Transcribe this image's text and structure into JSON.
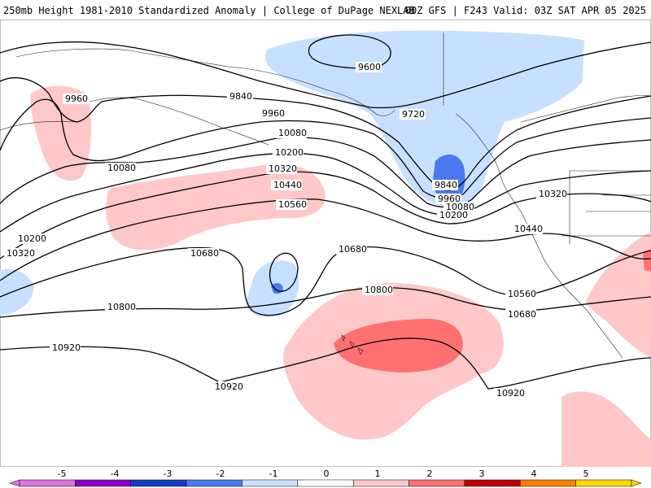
{
  "header": {
    "title_left": "250mb Height 1981-2010 Standardized Anomaly | College of DuPage NEXLAB",
    "title_right": "00Z GFS | F243 Valid: 03Z SAT APR 05 2025"
  },
  "contours": {
    "c9600": "9600",
    "c9720": "9720",
    "c9840a": "9840",
    "c9840b": "9840",
    "c9960a": "9960",
    "c9960b": "9960",
    "c9960c": "9960",
    "c10080a": "10080",
    "c10080b": "10080",
    "c10080c": "10080",
    "c10200a": "10200",
    "c10200b": "10200",
    "c10200c": "10200",
    "c10320a": "10320",
    "c10320b": "10320",
    "c10320c": "10320",
    "c10440a": "10440",
    "c10440b": "10440",
    "c10560a": "10560",
    "c10560b": "10560",
    "c10680a": "10680",
    "c10680b": "10680",
    "c10680c": "10680",
    "c10800a": "10800",
    "c10800b": "10800",
    "c10920a": "10920",
    "c10920b": "10920",
    "c10920c": "10920"
  },
  "colorbar": {
    "ticks": [
      "-5",
      "-4",
      "-3",
      "-2",
      "-1",
      "0",
      "1",
      "2",
      "3",
      "4",
      "5"
    ],
    "colors": [
      "#e070e0",
      "#8a00c8",
      "#1040c0",
      "#4a78f0",
      "#c8e0ff",
      "#ffffff",
      "#ffc8c8",
      "#ff7070",
      "#c00000",
      "#ff8000",
      "#ffd700"
    ]
  }
}
